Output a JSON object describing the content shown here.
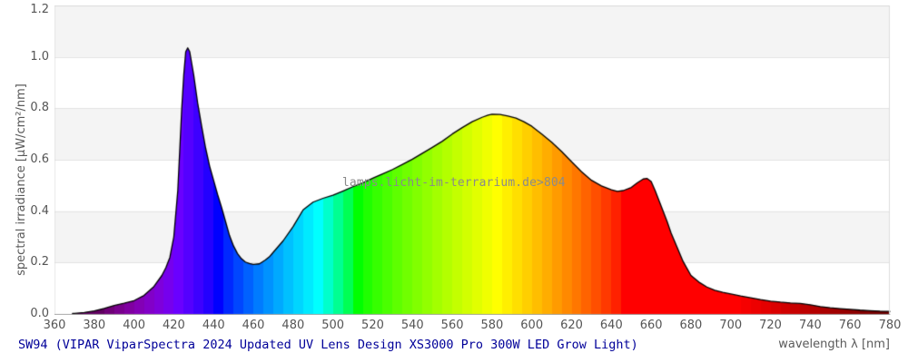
{
  "chart": {
    "y_axis_label": "spectral irradiance [µW/cm²/nm]",
    "x_axis_label": "wavelength λ [nm]",
    "watermark": "lamps.licht-im-terrarium.de>804",
    "caption": "SW94 (VIPAR ViparSpectra 2024 Updated UV Lens Design XS3000 Pro 300W LED Grow Light)",
    "colors": {
      "background": "#ffffff",
      "band_fill": "#f4f4f4",
      "gridline": "#e3e3e3",
      "border": "#dcdcdc",
      "baseline": "#aaaaaa",
      "curve_outline": "#000000",
      "caption_text": "#000099",
      "watermark_text": "#8a8a8a",
      "tick_text": "#555555",
      "fill_style": "spectral-wavelength-colormap"
    }
  },
  "chart_data": {
    "type": "area",
    "title": "",
    "xlabel": "wavelength λ [nm]",
    "ylabel": "spectral irradiance [µW/cm²/nm]",
    "xlim": [
      360,
      780
    ],
    "ylim": [
      0,
      1.2
    ],
    "x_tick_labels": [
      "360",
      "380",
      "400",
      "420",
      "440",
      "460",
      "480",
      "500",
      "520",
      "540",
      "560",
      "580",
      "600",
      "620",
      "640",
      "660",
      "680",
      "700",
      "720",
      "740",
      "760",
      "780"
    ],
    "y_tick_labels": [
      "0.0",
      "0.2",
      "0.4",
      "0.6",
      "0.8",
      "1.0",
      "1.2"
    ],
    "grid": "horizontal-bands-alternating-0.2",
    "legend": "none",
    "color_strip_step_nm": 5,
    "series": [
      {
        "name": "spectral irradiance",
        "points": [
          [
            360,
            0
          ],
          [
            365,
            0
          ],
          [
            370,
            0.002
          ],
          [
            375,
            0.006
          ],
          [
            380,
            0.012
          ],
          [
            385,
            0.022
          ],
          [
            390,
            0.033
          ],
          [
            395,
            0.042
          ],
          [
            400,
            0.052
          ],
          [
            405,
            0.072
          ],
          [
            410,
            0.107
          ],
          [
            414,
            0.15
          ],
          [
            416,
            0.18
          ],
          [
            418,
            0.22
          ],
          [
            420,
            0.3
          ],
          [
            422,
            0.48
          ],
          [
            424,
            0.8
          ],
          [
            425,
            0.93
          ],
          [
            426,
            1.02
          ],
          [
            427,
            1.035
          ],
          [
            428,
            1.02
          ],
          [
            430,
            0.93
          ],
          [
            432,
            0.82
          ],
          [
            434,
            0.73
          ],
          [
            436,
            0.645
          ],
          [
            438,
            0.575
          ],
          [
            440,
            0.52
          ],
          [
            442,
            0.465
          ],
          [
            444,
            0.415
          ],
          [
            446,
            0.36
          ],
          [
            448,
            0.305
          ],
          [
            450,
            0.265
          ],
          [
            452,
            0.235
          ],
          [
            454,
            0.215
          ],
          [
            456,
            0.202
          ],
          [
            458,
            0.196
          ],
          [
            460,
            0.193
          ],
          [
            463,
            0.195
          ],
          [
            466,
            0.21
          ],
          [
            468,
            0.222
          ],
          [
            470,
            0.24
          ],
          [
            475,
            0.285
          ],
          [
            480,
            0.34
          ],
          [
            485,
            0.405
          ],
          [
            490,
            0.435
          ],
          [
            495,
            0.45
          ],
          [
            500,
            0.462
          ],
          [
            505,
            0.478
          ],
          [
            510,
            0.495
          ],
          [
            515,
            0.51
          ],
          [
            520,
            0.528
          ],
          [
            525,
            0.545
          ],
          [
            530,
            0.562
          ],
          [
            535,
            0.582
          ],
          [
            540,
            0.602
          ],
          [
            545,
            0.625
          ],
          [
            550,
            0.648
          ],
          [
            555,
            0.672
          ],
          [
            560,
            0.7
          ],
          [
            565,
            0.725
          ],
          [
            570,
            0.748
          ],
          [
            575,
            0.765
          ],
          [
            578,
            0.773
          ],
          [
            580,
            0.777
          ],
          [
            584,
            0.776
          ],
          [
            588,
            0.77
          ],
          [
            592,
            0.762
          ],
          [
            596,
            0.748
          ],
          [
            600,
            0.73
          ],
          [
            605,
            0.7
          ],
          [
            610,
            0.668
          ],
          [
            615,
            0.632
          ],
          [
            620,
            0.592
          ],
          [
            625,
            0.553
          ],
          [
            630,
            0.52
          ],
          [
            635,
            0.498
          ],
          [
            640,
            0.483
          ],
          [
            643,
            0.477
          ],
          [
            646,
            0.48
          ],
          [
            650,
            0.492
          ],
          [
            653,
            0.51
          ],
          [
            656,
            0.525
          ],
          [
            658,
            0.527
          ],
          [
            660,
            0.515
          ],
          [
            662,
            0.48
          ],
          [
            665,
            0.42
          ],
          [
            668,
            0.36
          ],
          [
            670,
            0.315
          ],
          [
            673,
            0.26
          ],
          [
            676,
            0.205
          ],
          [
            680,
            0.15
          ],
          [
            684,
            0.124
          ],
          [
            688,
            0.105
          ],
          [
            692,
            0.092
          ],
          [
            696,
            0.084
          ],
          [
            700,
            0.078
          ],
          [
            705,
            0.07
          ],
          [
            710,
            0.063
          ],
          [
            715,
            0.056
          ],
          [
            720,
            0.05
          ],
          [
            725,
            0.046
          ],
          [
            730,
            0.043
          ],
          [
            735,
            0.041
          ],
          [
            740,
            0.036
          ],
          [
            745,
            0.029
          ],
          [
            750,
            0.024
          ],
          [
            755,
            0.021
          ],
          [
            760,
            0.018
          ],
          [
            765,
            0.015
          ],
          [
            770,
            0.013
          ],
          [
            775,
            0.011
          ],
          [
            780,
            0.01
          ]
        ]
      }
    ],
    "annotations": [
      {
        "text": "lamps.licht-im-terrarium.de>804",
        "approx_x_nm": 505,
        "approx_y": 0.52
      }
    ]
  }
}
